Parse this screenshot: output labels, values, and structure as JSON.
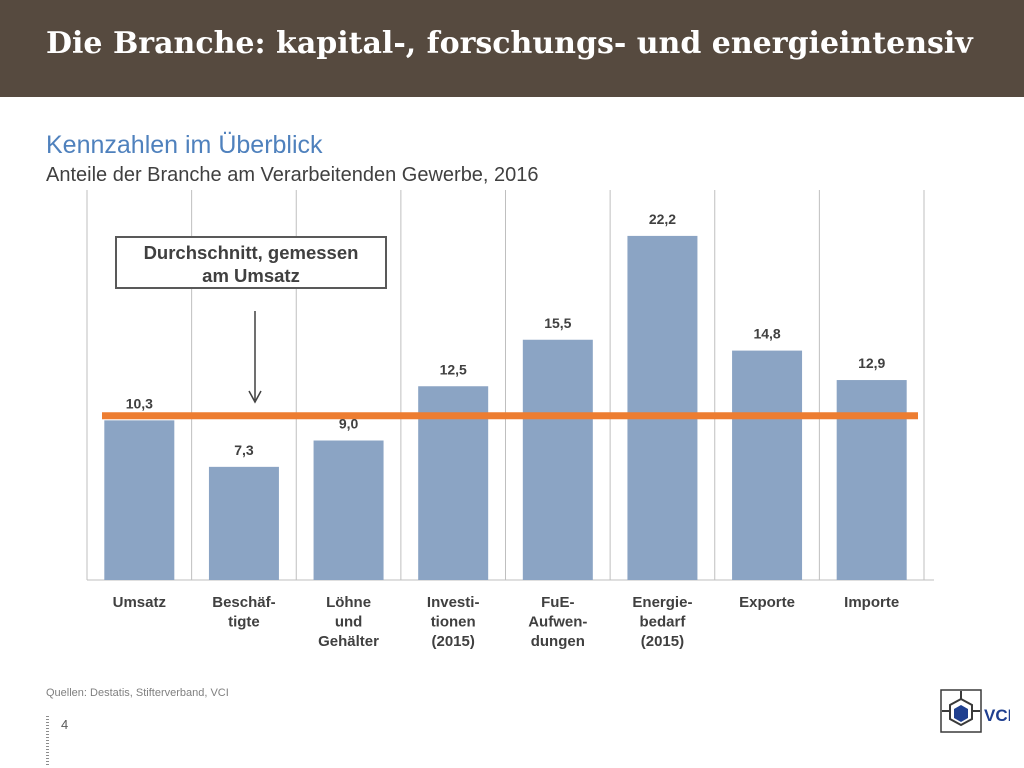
{
  "header": {
    "title": "Die Branche: kapital-, forschungs- und energieintensiv"
  },
  "section": {
    "title": "Kennzahlen im Überblick"
  },
  "chart_data": {
    "type": "bar",
    "title": "",
    "subtitle": "Anteile der Branche am Verarbeitenden Gewerbe, 2016",
    "categories": [
      "Umsatz",
      "Beschäf-\ntigte",
      "Löhne\nund\nGehälter",
      "Investi-\ntionen\n(2015)",
      "FuE-\nAufwen-\ndungen",
      "Energie-\nbedarf\n(2015)",
      "Exporte",
      "Importe"
    ],
    "values": [
      10.3,
      7.3,
      9.0,
      12.5,
      15.5,
      22.2,
      14.8,
      12.9
    ],
    "value_labels": [
      "10,3",
      "7,3",
      "9,0",
      "12,5",
      "15,5",
      "22,2",
      "14,8",
      "12,9"
    ],
    "reference_line": {
      "value": 10.6,
      "color": "#ed7d31"
    },
    "ylim": [
      0,
      25
    ],
    "grid": "vertical separators",
    "bar_color": "#8ba4c4",
    "annotation": "Durchschnitt, gemessen\nam Umsatz"
  },
  "footer": {
    "source": "Quellen: Destatis, Stifterverband, VCI",
    "page_number": "4",
    "logo_text": "VCI"
  },
  "colors": {
    "header_bg": "#564a3f",
    "section_title": "#4f81bd",
    "bar": "#8ba4c4",
    "reference_line": "#ed7d31"
  }
}
